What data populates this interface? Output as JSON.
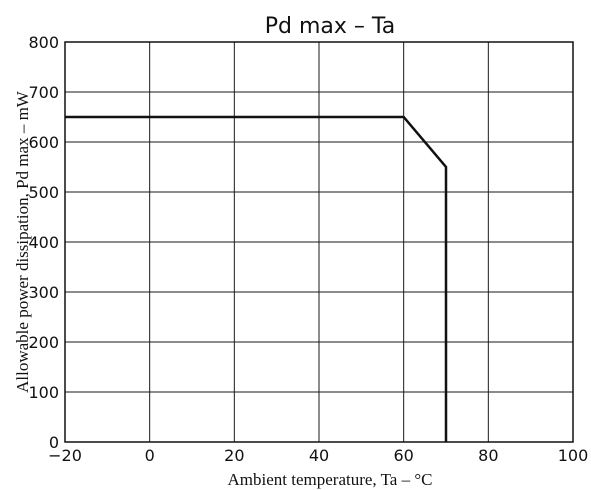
{
  "chart_data": {
    "type": "line",
    "title": "Pd max   –   Ta",
    "xlabel": "Ambient temperature, Ta   –   °C",
    "ylabel": "Allowable power dissipation, Pd max   –   mW",
    "xlim": [
      -20,
      100
    ],
    "ylim": [
      0,
      800
    ],
    "x_ticks": [
      -20,
      0,
      20,
      40,
      60,
      80,
      100
    ],
    "y_ticks": [
      0,
      100,
      200,
      300,
      400,
      500,
      600,
      700,
      800
    ],
    "x_tick_labels": [
      "−20",
      "0",
      "20",
      "40",
      "60",
      "80",
      "100"
    ],
    "y_tick_labels": [
      "0",
      "100",
      "200",
      "300",
      "400",
      "500",
      "600",
      "700",
      "800"
    ],
    "grid": true,
    "series": [
      {
        "x": [
          -20,
          60,
          70,
          70
        ],
        "y": [
          650,
          650,
          550,
          0
        ]
      }
    ]
  }
}
